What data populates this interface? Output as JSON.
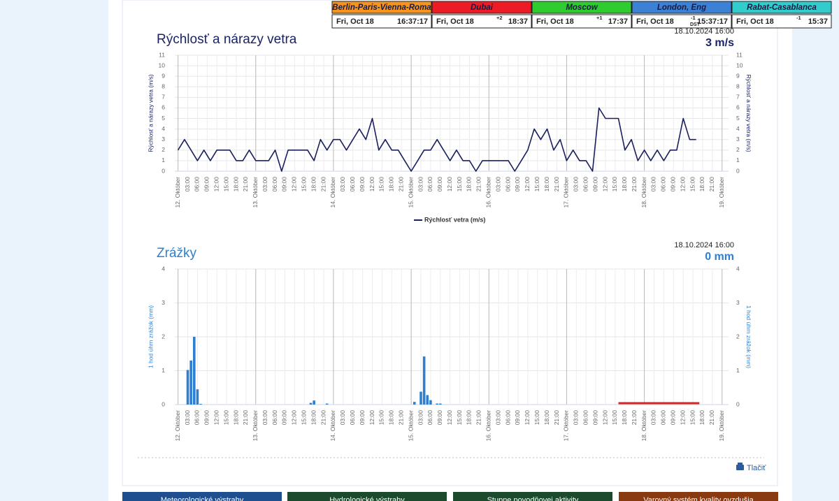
{
  "clocks": [
    {
      "name": "Berlin-Paris-Vienna-Roma",
      "color": "#f7941d",
      "date": "Fri, Oct 18",
      "time": "16:37:17"
    },
    {
      "name": "Dubai",
      "color": "#ed1c24",
      "date": "Fri, Oct 18",
      "offset": "+2",
      "time": "18:37"
    },
    {
      "name": "Moscow",
      "color": "#2ecc2e",
      "date": "Fri, Oct 18",
      "offset": "+1",
      "time": "17:37"
    },
    {
      "name": "London, Eng",
      "color": "#3b82d6",
      "date": "Fri, Oct 18",
      "offset": "-1",
      "dst": "DST",
      "time": "15:37:17"
    },
    {
      "name": "Rabat-Casablanca",
      "color": "#33cccc",
      "date": "Fri, Oct 18",
      "offset": "-1",
      "time": "15:37"
    }
  ],
  "chart_data": [
    {
      "type": "line",
      "title": "Rýchlosť a nárazy vetra",
      "timestamp": "18.10.2024 16:00",
      "current": "3 m/s",
      "y_label": "Rýchlosť a nárazy vetra (m/s)",
      "title_color": "#1a2366",
      "series": [
        {
          "name": "Rýchlosť vetra (m/s)",
          "color": "#1a1f5e",
          "x": [
            0,
            2,
            4,
            6,
            8,
            10,
            12,
            14,
            16,
            18,
            20,
            22,
            24,
            26,
            28,
            30,
            32,
            34,
            36,
            38,
            40,
            42,
            44,
            46,
            48,
            50,
            52,
            54,
            56,
            58,
            60,
            62,
            64,
            66,
            68,
            70,
            72,
            74,
            76,
            78,
            80,
            82,
            84,
            86,
            88,
            90,
            92,
            94,
            96,
            98,
            100,
            102,
            104,
            106,
            108,
            110,
            112,
            114,
            116,
            118,
            120,
            122,
            124,
            126,
            128,
            130,
            132,
            134,
            136,
            138,
            140,
            142,
            144,
            146,
            148,
            150,
            152,
            154,
            156,
            158,
            160
          ],
          "values": [
            2,
            3,
            2,
            1,
            2,
            1,
            2,
            2,
            2,
            1,
            1,
            2,
            1,
            1,
            1,
            2,
            0,
            2,
            2,
            2,
            2,
            1,
            3,
            2,
            3,
            3,
            2,
            3,
            4,
            3,
            5,
            2,
            3,
            2,
            2,
            1,
            0,
            1,
            2,
            2,
            3,
            2,
            1,
            2,
            1,
            1,
            0,
            1,
            1,
            1,
            1,
            1,
            0,
            1,
            2,
            4,
            3,
            4,
            2,
            3,
            1,
            2,
            1,
            1,
            0,
            6,
            5,
            5,
            5,
            2,
            3,
            1,
            2,
            1,
            2,
            1,
            2,
            2,
            5,
            3,
            3
          ]
        }
      ],
      "xlim": [
        -1,
        170
      ],
      "ylim": [
        0,
        11
      ],
      "yticks": [
        0,
        1,
        2,
        3,
        4,
        5,
        6,
        7,
        8,
        9,
        10,
        11
      ],
      "grid": true,
      "xticks": [
        {
          "value": 0,
          "label": "12. Október"
        },
        {
          "value": 3,
          "label": "03:00"
        },
        {
          "value": 6,
          "label": "06:00"
        },
        {
          "value": 9,
          "label": "09:00"
        },
        {
          "value": 12,
          "label": "12:00"
        },
        {
          "value": 15,
          "label": "15:00"
        },
        {
          "value": 18,
          "label": "18:00"
        },
        {
          "value": 21,
          "label": "21:00"
        },
        {
          "value": 24,
          "label": "13. Október"
        },
        {
          "value": 27,
          "label": "03:00"
        },
        {
          "value": 30,
          "label": "06:00"
        },
        {
          "value": 33,
          "label": "09:00"
        },
        {
          "value": 36,
          "label": "12:00"
        },
        {
          "value": 39,
          "label": "15:00"
        },
        {
          "value": 42,
          "label": "18:00"
        },
        {
          "value": 45,
          "label": "21:00"
        },
        {
          "value": 48,
          "label": "14. Október"
        },
        {
          "value": 51,
          "label": "03:00"
        },
        {
          "value": 54,
          "label": "06:00"
        },
        {
          "value": 57,
          "label": "09:00"
        },
        {
          "value": 60,
          "label": "12:00"
        },
        {
          "value": 63,
          "label": "15:00"
        },
        {
          "value": 66,
          "label": "18:00"
        },
        {
          "value": 69,
          "label": "21:00"
        },
        {
          "value": 72,
          "label": "15. Október"
        },
        {
          "value": 75,
          "label": "03:00"
        },
        {
          "value": 78,
          "label": "06:00"
        },
        {
          "value": 81,
          "label": "09:00"
        },
        {
          "value": 84,
          "label": "12:00"
        },
        {
          "value": 87,
          "label": "15:00"
        },
        {
          "value": 90,
          "label": "18:00"
        },
        {
          "value": 93,
          "label": "21:00"
        },
        {
          "value": 96,
          "label": "16. Október"
        },
        {
          "value": 99,
          "label": "03:00"
        },
        {
          "value": 102,
          "label": "06:00"
        },
        {
          "value": 105,
          "label": "09:00"
        },
        {
          "value": 108,
          "label": "12:00"
        },
        {
          "value": 111,
          "label": "15:00"
        },
        {
          "value": 114,
          "label": "18:00"
        },
        {
          "value": 117,
          "label": "21:00"
        },
        {
          "value": 120,
          "label": "17. Október"
        },
        {
          "value": 123,
          "label": "03:00"
        },
        {
          "value": 126,
          "label": "06:00"
        },
        {
          "value": 129,
          "label": "09:00"
        },
        {
          "value": 132,
          "label": "12:00"
        },
        {
          "value": 135,
          "label": "15:00"
        },
        {
          "value": 138,
          "label": "18:00"
        },
        {
          "value": 141,
          "label": "21:00"
        },
        {
          "value": 144,
          "label": "18. Október"
        },
        {
          "value": 147,
          "label": "03:00"
        },
        {
          "value": 150,
          "label": "06:00"
        },
        {
          "value": 153,
          "label": "09:00"
        },
        {
          "value": 156,
          "label": "12:00"
        },
        {
          "value": 159,
          "label": "15:00"
        },
        {
          "value": 162,
          "label": "18:00"
        },
        {
          "value": 165,
          "label": "21:00"
        },
        {
          "value": 168,
          "label": "19. Október"
        }
      ]
    },
    {
      "type": "bar",
      "title": "Zrážky",
      "timestamp": "18.10.2024 16:00",
      "current": "0 mm",
      "y_label": "1 hod úhrn zrážok (mm)",
      "title_color": "#2f7fd0",
      "color": "#2f7fd0",
      "x": [
        3,
        4,
        5,
        6,
        7,
        41,
        42,
        46,
        73,
        75,
        76,
        77,
        78,
        80,
        81
      ],
      "values": [
        1.02,
        1.3,
        2.0,
        0.45,
        0.02,
        0.05,
        0.12,
        0.03,
        0.08,
        0.38,
        1.42,
        0.28,
        0.13,
        0.03,
        0.03
      ],
      "no_data_range": [
        136,
        161
      ],
      "no_data_color": "#d62728",
      "xlim": [
        -1,
        170
      ],
      "ylim": [
        0,
        4
      ],
      "yticks": [
        0,
        1,
        2,
        3,
        4
      ],
      "grid": true,
      "xticks": [
        {
          "value": 0,
          "label": "12. Október"
        },
        {
          "value": 3,
          "label": "03:00"
        },
        {
          "value": 6,
          "label": "06:00"
        },
        {
          "value": 9,
          "label": "09:00"
        },
        {
          "value": 12,
          "label": "12:00"
        },
        {
          "value": 15,
          "label": "15:00"
        },
        {
          "value": 18,
          "label": "18:00"
        },
        {
          "value": 21,
          "label": "21:00"
        },
        {
          "value": 24,
          "label": "13. Október"
        },
        {
          "value": 27,
          "label": "03:00"
        },
        {
          "value": 30,
          "label": "06:00"
        },
        {
          "value": 33,
          "label": "09:00"
        },
        {
          "value": 36,
          "label": "12:00"
        },
        {
          "value": 39,
          "label": "15:00"
        },
        {
          "value": 42,
          "label": "18:00"
        },
        {
          "value": 45,
          "label": "21:00"
        },
        {
          "value": 48,
          "label": "14. Október"
        },
        {
          "value": 51,
          "label": "03:00"
        },
        {
          "value": 54,
          "label": "06:00"
        },
        {
          "value": 57,
          "label": "09:00"
        },
        {
          "value": 60,
          "label": "12:00"
        },
        {
          "value": 63,
          "label": "15:00"
        },
        {
          "value": 66,
          "label": "18:00"
        },
        {
          "value": 69,
          "label": "21:00"
        },
        {
          "value": 72,
          "label": "15. Október"
        },
        {
          "value": 75,
          "label": "03:00"
        },
        {
          "value": 78,
          "label": "06:00"
        },
        {
          "value": 81,
          "label": "09:00"
        },
        {
          "value": 84,
          "label": "12:00"
        },
        {
          "value": 87,
          "label": "15:00"
        },
        {
          "value": 90,
          "label": "18:00"
        },
        {
          "value": 93,
          "label": "21:00"
        },
        {
          "value": 96,
          "label": "16. Október"
        },
        {
          "value": 99,
          "label": "03:00"
        },
        {
          "value": 102,
          "label": "06:00"
        },
        {
          "value": 105,
          "label": "09:00"
        },
        {
          "value": 108,
          "label": "12:00"
        },
        {
          "value": 111,
          "label": "15:00"
        },
        {
          "value": 114,
          "label": "18:00"
        },
        {
          "value": 117,
          "label": "21:00"
        },
        {
          "value": 120,
          "label": "17. Október"
        },
        {
          "value": 123,
          "label": "03:00"
        },
        {
          "value": 126,
          "label": "06:00"
        },
        {
          "value": 129,
          "label": "09:00"
        },
        {
          "value": 132,
          "label": "12:00"
        },
        {
          "value": 135,
          "label": "15:00"
        },
        {
          "value": 138,
          "label": "18:00"
        },
        {
          "value": 141,
          "label": "21:00"
        },
        {
          "value": 144,
          "label": "18. Október"
        },
        {
          "value": 147,
          "label": "03:00"
        },
        {
          "value": 150,
          "label": "06:00"
        },
        {
          "value": 153,
          "label": "09:00"
        },
        {
          "value": 156,
          "label": "12:00"
        },
        {
          "value": 159,
          "label": "15:00"
        },
        {
          "value": 162,
          "label": "18:00"
        },
        {
          "value": 165,
          "label": "21:00"
        },
        {
          "value": 168,
          "label": "19. Október"
        }
      ]
    }
  ],
  "print_label": "Tlačiť",
  "nav_buttons": [
    {
      "label": "Meteorologické výstrahy",
      "color": "#1f4f8f"
    },
    {
      "label": "Hydrologické výstrahy",
      "color": "#1b4a2c"
    },
    {
      "label": "Stupne povodňovej aktivity",
      "color": "#1b4a2c"
    },
    {
      "label": "Varovný systém kvality ovzdušia",
      "color": "#8a3a10"
    }
  ]
}
